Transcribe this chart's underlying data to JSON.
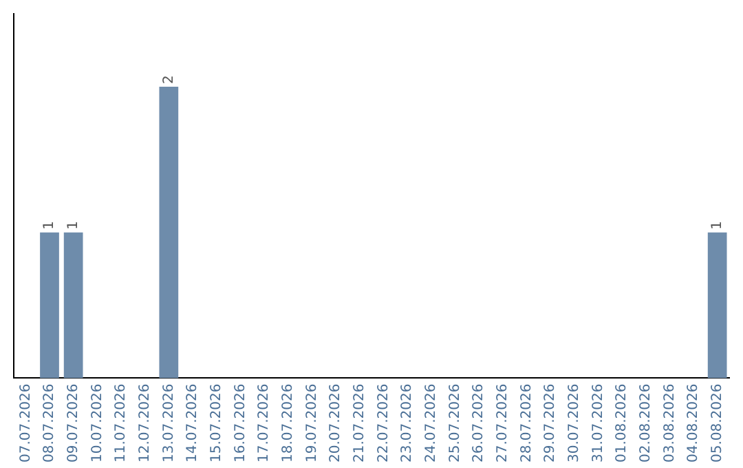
{
  "chart_data": {
    "type": "bar",
    "categories": [
      "07.07.2026",
      "08.07.2026",
      "09.07.2026",
      "10.07.2026",
      "11.07.2026",
      "12.07.2026",
      "13.07.2026",
      "14.07.2026",
      "15.07.2026",
      "16.07.2026",
      "17.07.2026",
      "18.07.2026",
      "19.07.2026",
      "20.07.2026",
      "21.07.2026",
      "22.07.2026",
      "23.07.2026",
      "24.07.2026",
      "25.07.2026",
      "26.07.2026",
      "27.07.2026",
      "28.07.2026",
      "29.07.2026",
      "30.07.2026",
      "31.07.2026",
      "01.08.2026",
      "02.08.2026",
      "03.08.2026",
      "04.08.2026",
      "05.08.2026"
    ],
    "values": [
      0,
      1,
      1,
      0,
      0,
      0,
      2,
      0,
      0,
      0,
      0,
      0,
      0,
      0,
      0,
      0,
      0,
      0,
      0,
      0,
      0,
      0,
      0,
      0,
      0,
      0,
      0,
      0,
      0,
      1
    ],
    "value_labels": [
      null,
      "1",
      "1",
      null,
      null,
      null,
      "2",
      null,
      null,
      null,
      null,
      null,
      null,
      null,
      null,
      null,
      null,
      null,
      null,
      null,
      null,
      null,
      null,
      null,
      null,
      null,
      null,
      null,
      null,
      "1"
    ],
    "color": "#6e8cab",
    "grid": false,
    "legend": false,
    "tick_labels": "x"
  }
}
